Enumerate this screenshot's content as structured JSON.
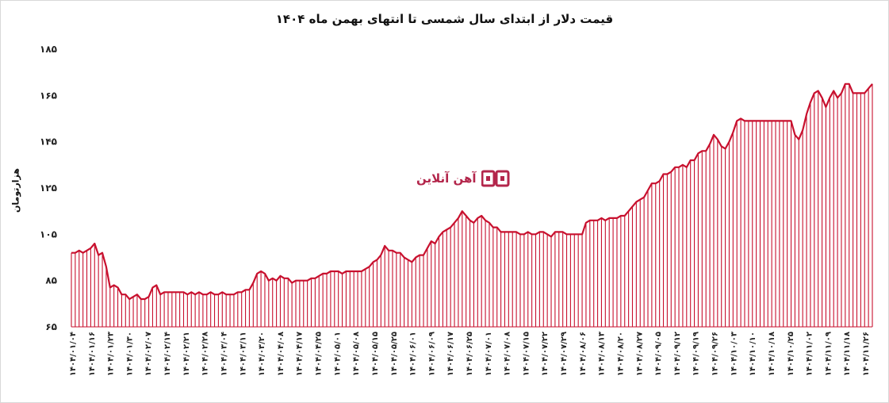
{
  "chart_data": {
    "type": "area",
    "title": "قیمت دلار از ابتدای سال شمسی تا انتهای بهمن ماه ۱۴۰۴",
    "ylabel": "هزارتومان",
    "xlabel": "",
    "ylim": [
      65,
      185
    ],
    "yticks": [
      "۶۵",
      "۸۵",
      "۱۰۵",
      "۱۲۵",
      "۱۴۵",
      "۱۶۵",
      "۱۸۵"
    ],
    "ytick_values": [
      65,
      85,
      105,
      125,
      145,
      165,
      185
    ],
    "grid": false,
    "legend": "none",
    "xtick_labels": [
      "۱۴۰۴/۰۱/۰۴",
      "۱۴۰۴/۰۱/۱۶",
      "۱۴۰۴/۰۱/۲۳",
      "۱۴۰۴/۰۱/۳۰",
      "۱۴۰۴/۰۲/۰۷",
      "۱۴۰۴/۰۲/۱۴",
      "۱۴۰۴/۰۲/۲۱",
      "۱۴۰۴/۰۲/۲۸",
      "۱۴۰۴/۰۳/۰۴",
      "۱۴۰۴/۰۳/۱۱",
      "۱۴۰۴/۰۳/۲۰",
      "۱۴۰۴/۰۴/۰۸",
      "۱۴۰۴/۰۴/۱۷",
      "۱۴۰۴/۰۴/۲۵",
      "۱۴۰۴/۰۵/۰۱",
      "۱۴۰۴/۰۵/۰۸",
      "۱۴۰۴/۰۵/۱۵",
      "۱۴۰۴/۰۵/۲۵",
      "۱۴۰۴/۰۶/۰۱",
      "۱۴۰۴/۰۶/۰۹",
      "۱۴۰۴/۰۶/۱۷",
      "۱۴۰۴/۰۶/۲۵",
      "۱۴۰۴/۰۷/۰۱",
      "۱۴۰۴/۰۷/۰۸",
      "۱۴۰۴/۰۷/۱۵",
      "۱۴۰۴/۰۷/۲۲",
      "۱۴۰۴/۰۷/۲۹",
      "۱۴۰۴/۰۸/۰۶",
      "۱۴۰۴/۰۸/۱۳",
      "۱۴۰۴/۰۸/۲۰",
      "۱۴۰۴/۰۸/۲۷",
      "۱۴۰۴/۰۹/۰۵",
      "۱۴۰۴/۰۹/۱۲",
      "۱۴۰۴/۰۹/۱۹",
      "۱۴۰۴/۰۹/۲۶",
      "۱۴۰۴/۱۰/۰۳",
      "۱۴۰۴/۱۰/۱۰",
      "۱۴۰۴/۱۰/۱۸",
      "۱۴۰۴/۱۰/۲۵",
      "۱۴۰۴/۱۱/۰۲",
      "۱۴۰۴/۱۱/۰۹",
      "۱۴۰۴/۱۱/۱۸",
      "۱۴۰۴/۱۱/۲۶"
    ],
    "series": [
      {
        "color": "#c8102e",
        "values": [
          97,
          97,
          98,
          97,
          98,
          99,
          101,
          96,
          97,
          91,
          82,
          83,
          82,
          79,
          79,
          77,
          78,
          79,
          77,
          77,
          78,
          82,
          83,
          79,
          80,
          80,
          80,
          80,
          80,
          80,
          79,
          80,
          79,
          80,
          79,
          79,
          80,
          79,
          79,
          80,
          79,
          79,
          79,
          80,
          80,
          81,
          81,
          84,
          88,
          89,
          88,
          85,
          86,
          85,
          87,
          86,
          86,
          84,
          85,
          85,
          85,
          85,
          86,
          86,
          87,
          88,
          88,
          89,
          89,
          89,
          88,
          89,
          89,
          89,
          89,
          89,
          90,
          91,
          93,
          94,
          96,
          100,
          98,
          98,
          97,
          97,
          95,
          94,
          93,
          95,
          96,
          96,
          99,
          102,
          101,
          104,
          106,
          107,
          108,
          110,
          112,
          115,
          113,
          111,
          110,
          112,
          113,
          111,
          110,
          108,
          108,
          106,
          106,
          106,
          106,
          106,
          105,
          105,
          106,
          105,
          105,
          106,
          106,
          105,
          104,
          106,
          106,
          106,
          105,
          105,
          105,
          105,
          105,
          110,
          111,
          111,
          111,
          112,
          111,
          112,
          112,
          112,
          113,
          113,
          115,
          117,
          119,
          120,
          121,
          124,
          127,
          127,
          128,
          131,
          131,
          132,
          134,
          134,
          135,
          134,
          137,
          137,
          140,
          141,
          141,
          144,
          148,
          146,
          143,
          142,
          145,
          149,
          154,
          155,
          154,
          154,
          154,
          154,
          154,
          154,
          154,
          154,
          154,
          154,
          154,
          154,
          154,
          148,
          146,
          150,
          157,
          162,
          166,
          167,
          164,
          160,
          164,
          167,
          164,
          166,
          170,
          170,
          166,
          166,
          166,
          166,
          168,
          170
        ]
      }
    ]
  },
  "logo": {
    "text": "آهن آنلاین"
  }
}
